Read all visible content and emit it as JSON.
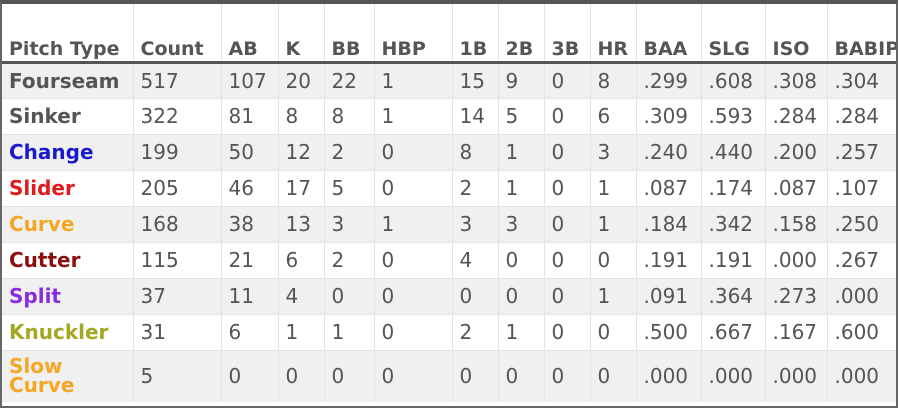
{
  "table": {
    "columns": [
      "Pitch Type",
      "Count",
      "AB",
      "K",
      "BB",
      "HBP",
      "1B",
      "2B",
      "3B",
      "HR",
      "BAA",
      "SLG",
      "ISO",
      "BABIP"
    ],
    "rows": [
      {
        "pitch": "Fourseam",
        "color": "#555555",
        "values": [
          "517",
          "107",
          "20",
          "22",
          "1",
          "15",
          "9",
          "0",
          "8",
          ".299",
          ".608",
          ".308",
          ".304"
        ]
      },
      {
        "pitch": "Sinker",
        "color": "#555555",
        "values": [
          "322",
          "81",
          "8",
          "8",
          "1",
          "14",
          "5",
          "0",
          "6",
          ".309",
          ".593",
          ".284",
          ".284"
        ]
      },
      {
        "pitch": "Change",
        "color": "#1a1acc",
        "values": [
          "199",
          "50",
          "12",
          "2",
          "0",
          "8",
          "1",
          "0",
          "3",
          ".240",
          ".440",
          ".200",
          ".257"
        ]
      },
      {
        "pitch": "Slider",
        "color": "#e01b1b",
        "values": [
          "205",
          "46",
          "17",
          "5",
          "0",
          "2",
          "1",
          "0",
          "1",
          ".087",
          ".174",
          ".087",
          ".107"
        ]
      },
      {
        "pitch": "Curve",
        "color": "#f5a623",
        "values": [
          "168",
          "38",
          "13",
          "3",
          "1",
          "3",
          "3",
          "0",
          "1",
          ".184",
          ".342",
          ".158",
          ".250"
        ]
      },
      {
        "pitch": "Cutter",
        "color": "#8b0f0f",
        "values": [
          "115",
          "21",
          "6",
          "2",
          "0",
          "4",
          "0",
          "0",
          "0",
          ".191",
          ".191",
          ".000",
          ".267"
        ]
      },
      {
        "pitch": "Split",
        "color": "#8a2be2",
        "values": [
          "37",
          "11",
          "4",
          "0",
          "0",
          "0",
          "0",
          "0",
          "1",
          ".091",
          ".364",
          ".273",
          ".000"
        ]
      },
      {
        "pitch": "Knuckler",
        "color": "#a2a822",
        "values": [
          "31",
          "6",
          "1",
          "1",
          "0",
          "2",
          "1",
          "0",
          "0",
          ".500",
          ".667",
          ".167",
          ".600"
        ]
      },
      {
        "pitch": "Slow Curve",
        "color": "#f5a623",
        "values": [
          "5",
          "0",
          "0",
          "0",
          "0",
          "0",
          "0",
          "0",
          "0",
          ".000",
          ".000",
          ".000",
          ".000"
        ]
      }
    ]
  }
}
